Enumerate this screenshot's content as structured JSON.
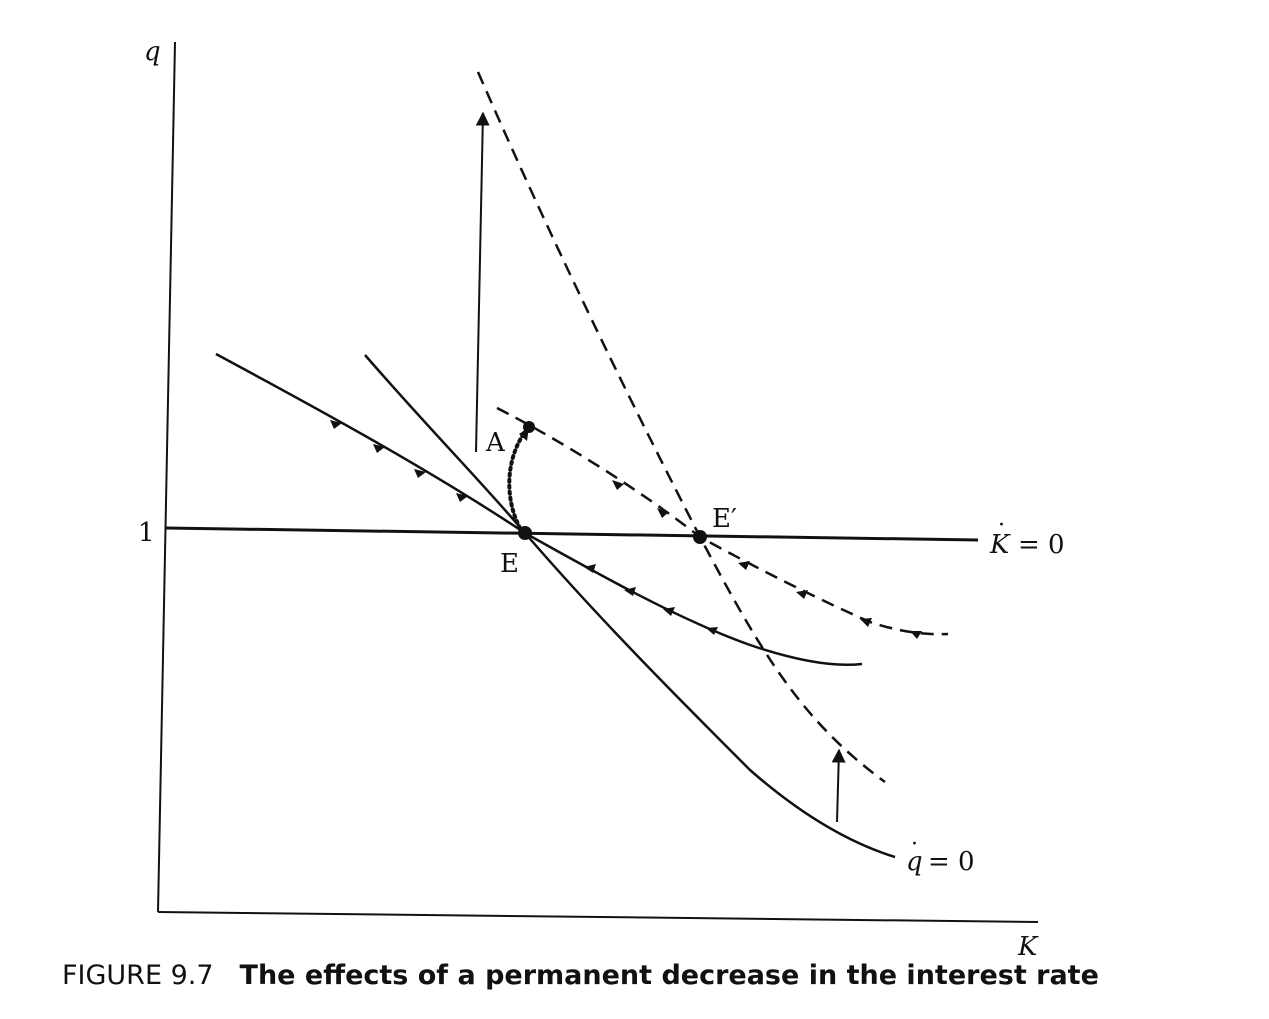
{
  "axes": {
    "y_label": "q",
    "x_label": "K",
    "y_tick": "1"
  },
  "curves": {
    "k_dot_label": "K",
    "k_dot_rhs": "= 0",
    "q_dot_label": "q",
    "q_dot_rhs": "= 0"
  },
  "points": {
    "E": "E",
    "E_prime": "E′",
    "A": "A"
  },
  "caption": {
    "number": "FIGURE 9.7",
    "text": "The effects of a permanent decrease in the interest rate"
  }
}
